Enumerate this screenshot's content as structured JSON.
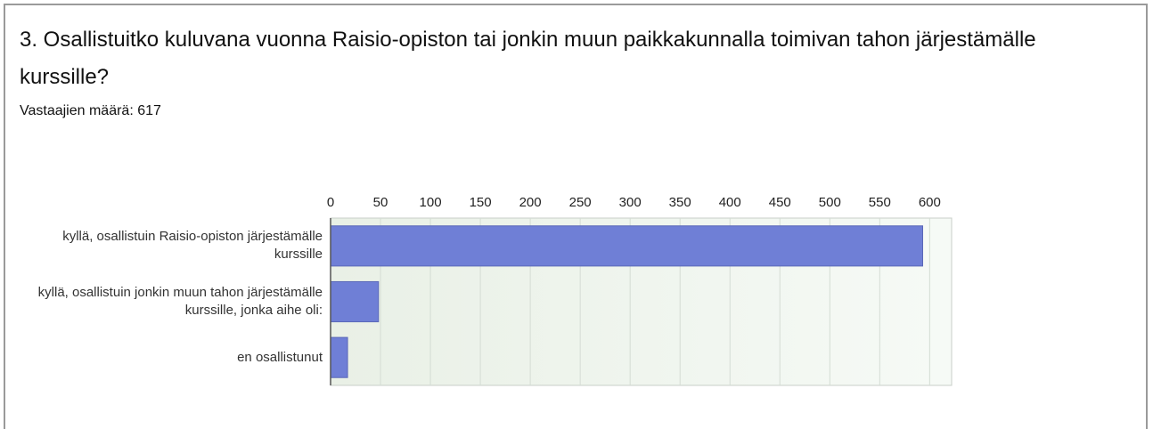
{
  "chart_data": {
    "type": "bar",
    "orientation": "horizontal",
    "title": "3. Osallistuitko kuluvana vuonna Raisio-opiston tai jonkin muun paikkakunnalla toimivan tahon järjestämälle kurssille?",
    "subtitle": "Vastaajien määrä: 617",
    "categories": [
      "kyllä, osallistuin Raisio-opiston järjestämälle kurssille",
      "kyllä, osallistuin jonkin muun tahon järjestämälle kurssille, jonka aihe oli:",
      "en osallistunut"
    ],
    "values": [
      593,
      48,
      17
    ],
    "color": "#6f7fd6",
    "xlim": [
      0,
      622
    ],
    "xticks": [
      0,
      50,
      100,
      150,
      200,
      250,
      300,
      350,
      400,
      450,
      500,
      550,
      600
    ],
    "grid": true
  }
}
